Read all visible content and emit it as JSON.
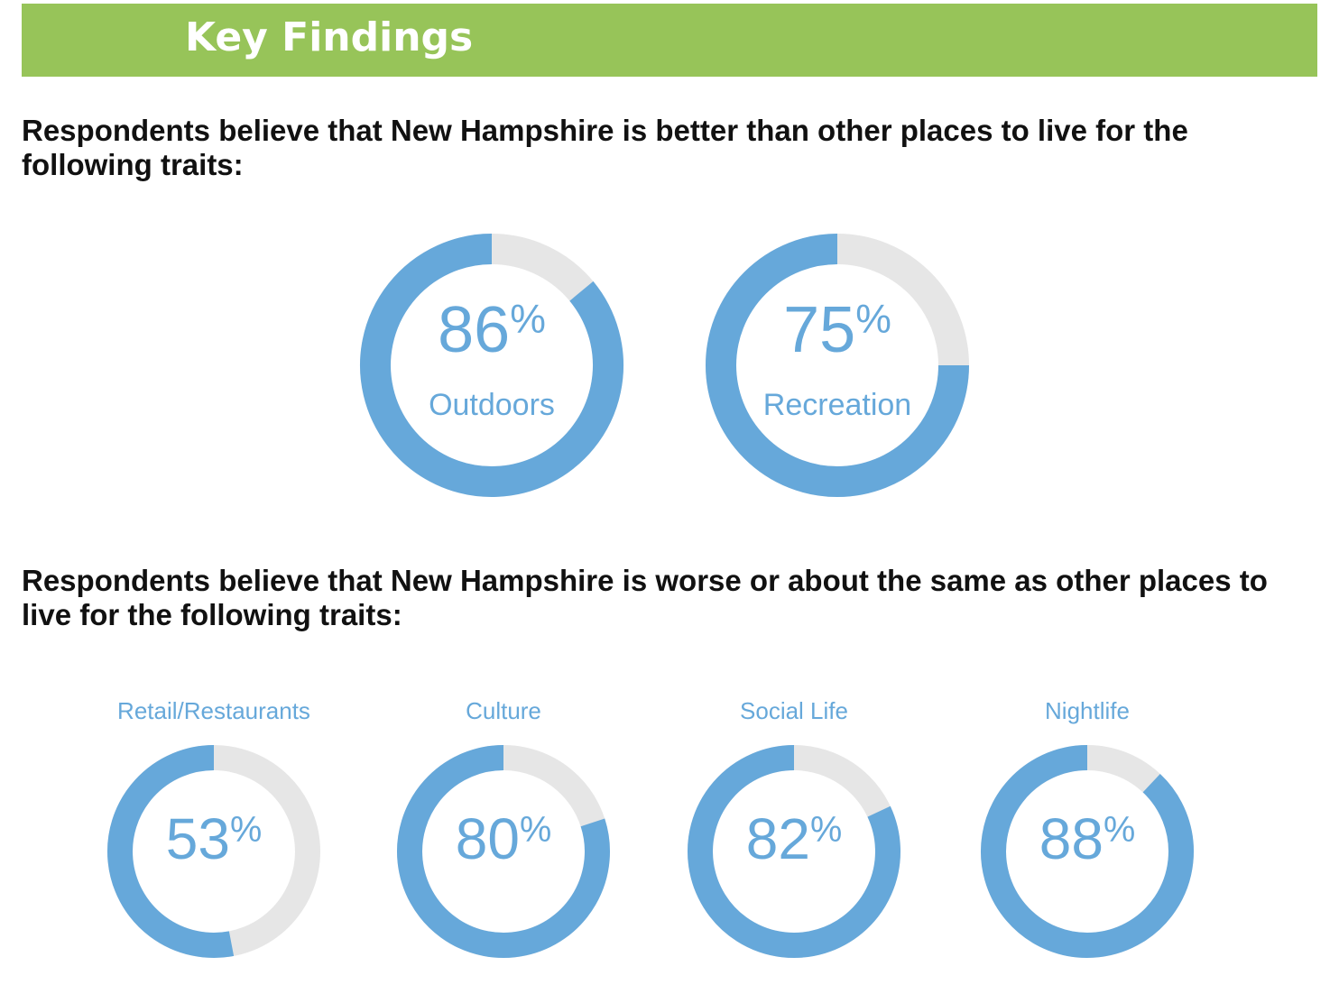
{
  "title": "Key Findings",
  "chart_data": [
    {
      "type": "donut",
      "title": "Respondents believe that New Hampshire is better than other places to live for the following traits:",
      "categories": [
        "Outdoors",
        "Recreation"
      ],
      "values": [
        86,
        75
      ],
      "unit": "%",
      "color": "#66a8da",
      "track_color": "#e6e6e6"
    },
    {
      "type": "donut",
      "title": "Respondents believe that New Hampshire is worse or about the same as other places to live for the following traits:",
      "categories": [
        "Retail/Restaurants",
        "Culture",
        "Social Life",
        "Nightlife"
      ],
      "values": [
        53,
        80,
        82,
        88
      ],
      "unit": "%",
      "color": "#66a8da",
      "track_color": "#e6e6e6"
    }
  ]
}
